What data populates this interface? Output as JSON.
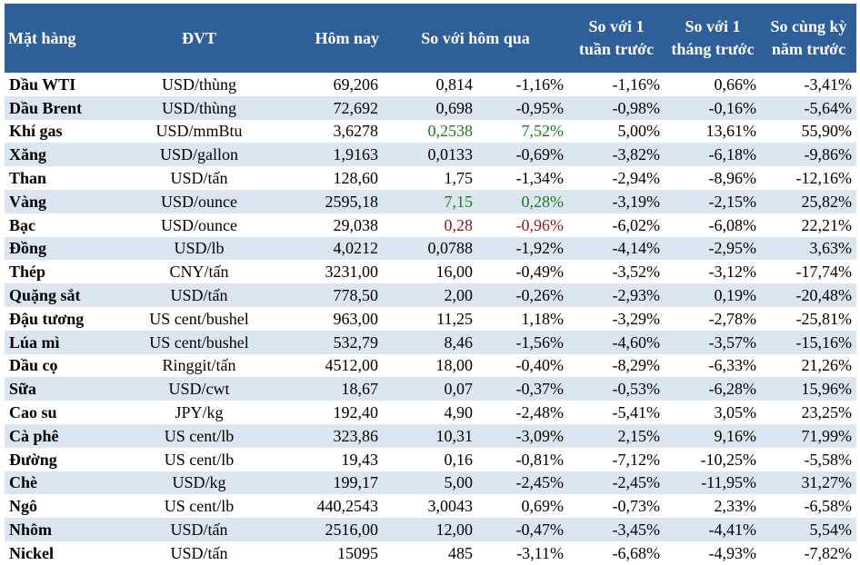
{
  "headers": {
    "item": "Mặt hàng",
    "unit": "ĐVT",
    "today": "Hôm nay",
    "vs_yesterday": "So với hôm qua",
    "vs_week": "So với 1 tuần trước",
    "vs_month": "So với 1 tháng trước",
    "vs_year": "So cùng kỳ năm trước"
  },
  "colors": {
    "header_bg": "#2f5f98",
    "alt_row_bg": "#dce6f1",
    "up": "#1e7b1e",
    "down": "#8b1a1a"
  },
  "rows": [
    {
      "name": "Dầu WTI",
      "unit": "USD/thùng",
      "today": "69,206",
      "change": "0,814",
      "pct": "-1,16%",
      "week": "-1,16%",
      "month": "0,66%",
      "year": "-3,41%",
      "hl": ""
    },
    {
      "name": "Dầu Brent",
      "unit": "USD/thùng",
      "today": "72,692",
      "change": "0,698",
      "pct": "-0,95%",
      "week": "-0,98%",
      "month": "-0,16%",
      "year": "-5,64%",
      "hl": ""
    },
    {
      "name": "Khí gas",
      "unit": "USD/mmBtu",
      "today": "3,6278",
      "change": "0,2538",
      "pct": "7,52%",
      "week": "5,00%",
      "month": "13,61%",
      "year": "55,90%",
      "hl": "up"
    },
    {
      "name": "Xăng",
      "unit": "USD/gallon",
      "today": "1,9163",
      "change": "0,0133",
      "pct": "-0,69%",
      "week": "-3,82%",
      "month": "-6,18%",
      "year": "-9,86%",
      "hl": ""
    },
    {
      "name": "Than",
      "unit": "USD/tấn",
      "today": "128,60",
      "change": "1,75",
      "pct": "-1,34%",
      "week": "-2,94%",
      "month": "-8,96%",
      "year": "-12,16%",
      "hl": ""
    },
    {
      "name": "Vàng",
      "unit": "USD/ounce",
      "today": "2595,18",
      "change": "7,15",
      "pct": "0,28%",
      "week": "-3,19%",
      "month": "-2,15%",
      "year": "25,82%",
      "hl": "up"
    },
    {
      "name": "Bạc",
      "unit": "USD/ounce",
      "today": "29,038",
      "change": "0,28",
      "pct": "-0,96%",
      "week": "-6,02%",
      "month": "-6,08%",
      "year": "22,21%",
      "hl": "down"
    },
    {
      "name": "Đồng",
      "unit": "USD/lb",
      "today": "4,0212",
      "change": "0,0788",
      "pct": "-1,92%",
      "week": "-4,14%",
      "month": "-2,95%",
      "year": "3,63%",
      "hl": ""
    },
    {
      "name": "Thép",
      "unit": "CNY/tấn",
      "today": "3231,00",
      "change": "16,00",
      "pct": "-0,49%",
      "week": "-3,52%",
      "month": "-3,12%",
      "year": "-17,74%",
      "hl": ""
    },
    {
      "name": "Quặng sắt",
      "unit": "USD/tấn",
      "today": "778,50",
      "change": "2,00",
      "pct": "-0,26%",
      "week": "-2,93%",
      "month": "0,19%",
      "year": "-20,48%",
      "hl": ""
    },
    {
      "name": "Đậu tương",
      "unit": "US cent/bushel",
      "today": "963,00",
      "change": "11,25",
      "pct": "1,18%",
      "week": "-3,29%",
      "month": "-2,78%",
      "year": "-25,81%",
      "hl": ""
    },
    {
      "name": "Lúa mì",
      "unit": "US cent/bushel",
      "today": "532,79",
      "change": "8,46",
      "pct": "-1,56%",
      "week": "-4,60%",
      "month": "-3,57%",
      "year": "-15,16%",
      "hl": ""
    },
    {
      "name": "Dầu cọ",
      "unit": "Ringgit/tấn",
      "today": "4512,00",
      "change": "18,00",
      "pct": "-0,40%",
      "week": "-8,29%",
      "month": "-6,33%",
      "year": "21,26%",
      "hl": ""
    },
    {
      "name": "Sữa",
      "unit": "USD/cwt",
      "today": "18,67",
      "change": "0,07",
      "pct": "-0,37%",
      "week": "-0,53%",
      "month": "-6,28%",
      "year": "15,96%",
      "hl": ""
    },
    {
      "name": "Cao su",
      "unit": "JPY/kg",
      "today": "192,40",
      "change": "4,90",
      "pct": "-2,48%",
      "week": "-5,41%",
      "month": "3,05%",
      "year": "23,25%",
      "hl": ""
    },
    {
      "name": "Cà phê",
      "unit": "US cent/lb",
      "today": "323,86",
      "change": "10,31",
      "pct": "-3,09%",
      "week": "2,15%",
      "month": "9,16%",
      "year": "71,99%",
      "hl": ""
    },
    {
      "name": "Đường",
      "unit": "US cent/lb",
      "today": "19,43",
      "change": "0,16",
      "pct": "-0,81%",
      "week": "-7,12%",
      "month": "-10,25%",
      "year": "-5,58%",
      "hl": ""
    },
    {
      "name": "Chè",
      "unit": "USD/kg",
      "today": "199,17",
      "change": "5,00",
      "pct": "-2,45%",
      "week": "-2,45%",
      "month": "-11,95%",
      "year": "31,27%",
      "hl": ""
    },
    {
      "name": "Ngô",
      "unit": "US cent/lb",
      "today": "440,2543",
      "change": "3,0043",
      "pct": "0,69%",
      "week": "-0,73%",
      "month": "2,33%",
      "year": "-6,58%",
      "hl": ""
    },
    {
      "name": "Nhôm",
      "unit": "USD/tấn",
      "today": "2516,00",
      "change": "12,00",
      "pct": "-0,47%",
      "week": "-3,45%",
      "month": "-4,41%",
      "year": "5,54%",
      "hl": ""
    },
    {
      "name": "Nickel",
      "unit": "USD/tấn",
      "today": "15095",
      "change": "485",
      "pct": "-3,11%",
      "week": "-6,68%",
      "month": "-4,93%",
      "year": "-7,82%",
      "hl": ""
    }
  ]
}
